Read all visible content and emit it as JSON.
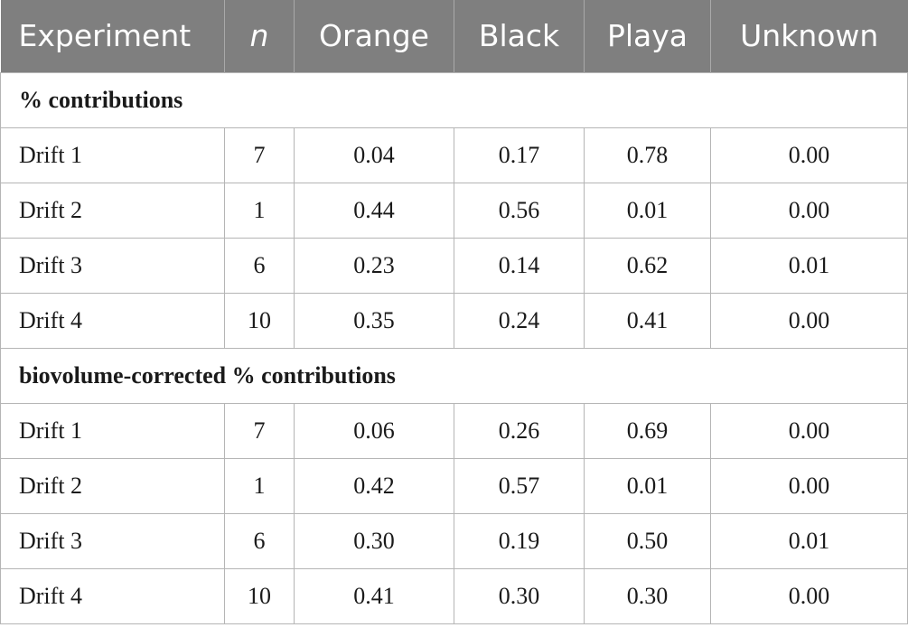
{
  "table": {
    "headers": [
      {
        "label": "Experiment",
        "italic": false
      },
      {
        "label": "n",
        "italic": true
      },
      {
        "label": "Orange",
        "italic": false
      },
      {
        "label": "Black",
        "italic": false
      },
      {
        "label": "Playa",
        "italic": false
      },
      {
        "label": "Unknown",
        "italic": false
      }
    ],
    "sections": [
      {
        "title": "% contributions",
        "rows": [
          {
            "experiment": "Drift 1",
            "n": "7",
            "orange": "0.04",
            "black": "0.17",
            "playa": "0.78",
            "unknown": "0.00"
          },
          {
            "experiment": "Drift 2",
            "n": "1",
            "orange": "0.44",
            "black": "0.56",
            "playa": "0.01",
            "unknown": "0.00"
          },
          {
            "experiment": "Drift 3",
            "n": "6",
            "orange": "0.23",
            "black": "0.14",
            "playa": "0.62",
            "unknown": "0.01"
          },
          {
            "experiment": "Drift 4",
            "n": "10",
            "orange": "0.35",
            "black": "0.24",
            "playa": "0.41",
            "unknown": "0.00"
          }
        ]
      },
      {
        "title": "biovolume-corrected % contributions",
        "rows": [
          {
            "experiment": "Drift 1",
            "n": "7",
            "orange": "0.06",
            "black": "0.26",
            "playa": "0.69",
            "unknown": "0.00"
          },
          {
            "experiment": "Drift 2",
            "n": "1",
            "orange": "0.42",
            "black": "0.57",
            "playa": "0.01",
            "unknown": "0.00"
          },
          {
            "experiment": "Drift 3",
            "n": "6",
            "orange": "0.30",
            "black": "0.19",
            "playa": "0.50",
            "unknown": "0.01"
          },
          {
            "experiment": "Drift 4",
            "n": "10",
            "orange": "0.41",
            "black": "0.30",
            "playa": "0.30",
            "unknown": "0.00"
          }
        ]
      }
    ],
    "colors": {
      "header_background": "#7f7f7f",
      "header_text": "#ffffff",
      "border": "#b5b5b5"
    }
  }
}
